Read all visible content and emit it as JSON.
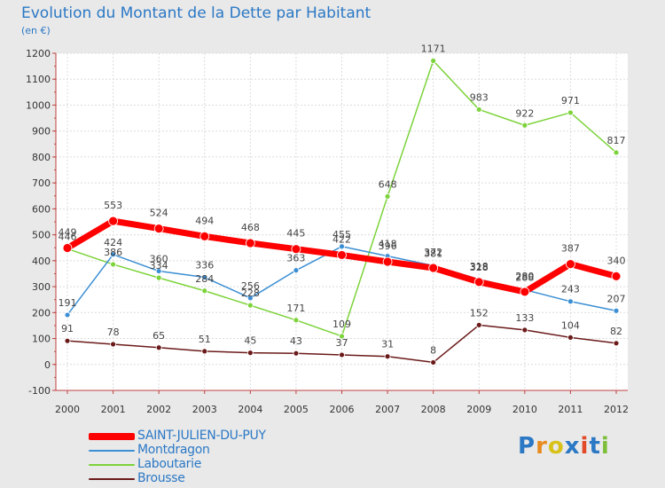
{
  "title": "Evolution du Montant de la Dette par Habitant",
  "subtitle": "(en €)",
  "brand": {
    "text": "Proxiti"
  },
  "chart_data": {
    "type": "line",
    "title": "Evolution du Montant de la Dette par Habitant",
    "subtitle": "(en €)",
    "categories": [
      "2000",
      "2001",
      "2002",
      "2003",
      "2004",
      "2005",
      "2006",
      "2007",
      "2008",
      "2009",
      "2010",
      "2011",
      "2012"
    ],
    "ylim": [
      -100,
      1200
    ],
    "yticks": [
      -100,
      0,
      100,
      200,
      300,
      400,
      500,
      600,
      700,
      800,
      900,
      1000,
      1100,
      1200
    ],
    "grid": true,
    "legend_position": "bottom-left",
    "series": [
      {
        "name": "SAINT-JULIEN-DU-PUY",
        "color": "#ff0000",
        "values": [
          449,
          553,
          524,
          494,
          468,
          445,
          422,
          396,
          372,
          318,
          280,
          387,
          340
        ]
      },
      {
        "name": "Montdragon",
        "color": "#3b8fd4",
        "values": [
          191,
          424,
          360,
          336,
          256,
          363,
          455,
          418,
          381,
          328,
          288,
          243,
          207
        ]
      },
      {
        "name": "Laboutarie",
        "color": "#7dd33b",
        "values": [
          446,
          386,
          334,
          284,
          228,
          171,
          109,
          648,
          1171,
          983,
          922,
          971,
          817
        ]
      },
      {
        "name": "Brousse",
        "color": "#6b1a1a",
        "values": [
          91,
          78,
          65,
          51,
          45,
          43,
          37,
          31,
          8,
          152,
          133,
          104,
          82
        ]
      }
    ]
  }
}
